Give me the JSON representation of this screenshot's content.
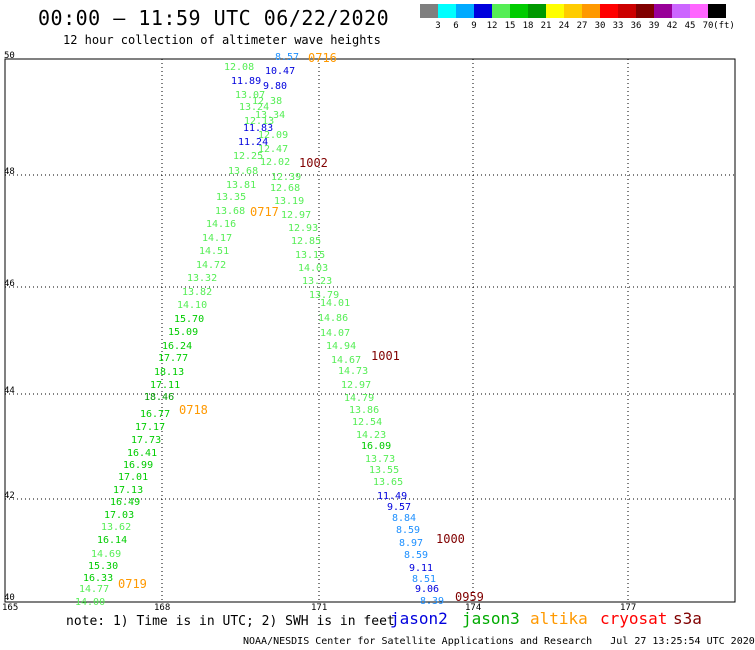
{
  "header": {
    "title": "00:00 – 11:59 UTC 06/22/2020",
    "subtitle": "12 hour collection of altimeter wave heights"
  },
  "legend": {
    "items": [
      {
        "label": "3",
        "color": "#7f7f7f"
      },
      {
        "label": "6",
        "color": "#00ffff"
      },
      {
        "label": "9",
        "color": "#00aaff"
      },
      {
        "label": "12",
        "color": "#0000dd"
      },
      {
        "label": "15",
        "color": "#55ee55"
      },
      {
        "label": "18",
        "color": "#00cc00"
      },
      {
        "label": "21",
        "color": "#009900"
      },
      {
        "label": "24",
        "color": "#ffff00"
      },
      {
        "label": "27",
        "color": "#ffcc00"
      },
      {
        "label": "30",
        "color": "#ff9900"
      },
      {
        "label": "33",
        "color": "#ff0000"
      },
      {
        "label": "36",
        "color": "#cc0000"
      },
      {
        "label": "39",
        "color": "#800000"
      },
      {
        "label": "42",
        "color": "#990099"
      },
      {
        "label": "45",
        "color": "#cc66ff"
      },
      {
        "label": "70",
        "color": "#ff66ff"
      },
      {
        "label": "",
        "color": "#000000"
      }
    ],
    "unit": "(ft)"
  },
  "axes": {
    "lat_labels": [
      "50",
      "48",
      "46",
      "44",
      "42",
      "40"
    ],
    "lon_labels": [
      "165",
      "168",
      "171",
      "174",
      "177"
    ]
  },
  "map_data": {
    "tracks": [
      {
        "satellite": "altika",
        "color": "#ff9900",
        "points": [
          {
            "v": "8.57",
            "c": "#1e90ff"
          },
          {
            "v": "10.47",
            "c": "#0000dd"
          },
          {
            "v": "12.08",
            "c": "#55ee55"
          },
          {
            "v": "11.89",
            "c": "#0000dd"
          },
          {
            "v": "9.80",
            "c": "#0000dd"
          },
          {
            "v": "13.07",
            "c": "#55ee55"
          },
          {
            "v": "12.38",
            "c": "#55ee55"
          },
          {
            "v": "13.24",
            "c": "#55ee55"
          },
          {
            "v": "13.34",
            "c": "#55ee55"
          },
          {
            "v": "12.13",
            "c": "#55ee55"
          },
          {
            "v": "11.83",
            "c": "#0000dd"
          },
          {
            "v": "12.09",
            "c": "#55ee55"
          },
          {
            "v": "11.24",
            "c": "#0000dd"
          },
          {
            "v": "12.47",
            "c": "#55ee55"
          },
          {
            "v": "12.25",
            "c": "#55ee55"
          },
          {
            "v": "12.02",
            "c": "#55ee55"
          },
          {
            "v": "12.39",
            "c": "#55ee55"
          },
          {
            "v": "13.68",
            "c": "#55ee55"
          },
          {
            "v": "13.81",
            "c": "#55ee55"
          },
          {
            "v": "12.68",
            "c": "#55ee55"
          },
          {
            "v": "13.35",
            "c": "#55ee55"
          },
          {
            "v": "13.19",
            "c": "#55ee55"
          },
          {
            "v": "13.68",
            "c": "#55ee55"
          },
          {
            "v": "12.97",
            "c": "#55ee55"
          },
          {
            "v": "14.16",
            "c": "#55ee55"
          },
          {
            "v": "12.93",
            "c": "#55ee55"
          },
          {
            "v": "14.17",
            "c": "#55ee55"
          },
          {
            "v": "12.85",
            "c": "#55ee55"
          },
          {
            "v": "14.51",
            "c": "#55ee55"
          },
          {
            "v": "13.15",
            "c": "#55ee55"
          },
          {
            "v": "14.72",
            "c": "#55ee55"
          },
          {
            "v": "14.03",
            "c": "#55ee55"
          },
          {
            "v": "13.32",
            "c": "#55ee55"
          },
          {
            "v": "13.23",
            "c": "#55ee55"
          },
          {
            "v": "13.82",
            "c": "#55ee55"
          },
          {
            "v": "13.79",
            "c": "#55ee55"
          },
          {
            "v": "14.10",
            "c": "#55ee55"
          },
          {
            "v": "14.01",
            "c": "#55ee55"
          },
          {
            "v": "15.70",
            "c": "#00cc00"
          },
          {
            "v": "14.86",
            "c": "#55ee55"
          },
          {
            "v": "15.09",
            "c": "#00cc00"
          },
          {
            "v": "14.07",
            "c": "#55ee55"
          },
          {
            "v": "16.24",
            "c": "#00cc00"
          },
          {
            "v": "14.94",
            "c": "#55ee55"
          },
          {
            "v": "17.77",
            "c": "#00cc00"
          },
          {
            "v": "14.67",
            "c": "#55ee55"
          },
          {
            "v": "18.13",
            "c": "#00cc00"
          },
          {
            "v": "14.73",
            "c": "#55ee55"
          },
          {
            "v": "17.11",
            "c": "#00cc00"
          },
          {
            "v": "12.97",
            "c": "#55ee55"
          },
          {
            "v": "18.46",
            "c": "#009900"
          },
          {
            "v": "14.79",
            "c": "#55ee55"
          },
          {
            "v": "16.77",
            "c": "#00cc00"
          },
          {
            "v": "13.86",
            "c": "#55ee55"
          },
          {
            "v": "17.17",
            "c": "#00cc00"
          },
          {
            "v": "12.54",
            "c": "#55ee55"
          },
          {
            "v": "17.73",
            "c": "#00cc00"
          },
          {
            "v": "14.23",
            "c": "#55ee55"
          },
          {
            "v": "16.41",
            "c": "#00cc00"
          },
          {
            "v": "16.09",
            "c": "#00cc00"
          },
          {
            "v": "16.99",
            "c": "#00cc00"
          },
          {
            "v": "13.73",
            "c": "#55ee55"
          },
          {
            "v": "17.01",
            "c": "#00cc00"
          },
          {
            "v": "13.55",
            "c": "#55ee55"
          },
          {
            "v": "17.13",
            "c": "#00cc00"
          },
          {
            "v": "13.65",
            "c": "#55ee55"
          },
          {
            "v": "16.49",
            "c": "#00cc00"
          },
          {
            "v": "11.49",
            "c": "#0000dd"
          },
          {
            "v": "17.03",
            "c": "#00cc00"
          },
          {
            "v": "9.57",
            "c": "#0000dd"
          },
          {
            "v": "13.62",
            "c": "#55ee55"
          },
          {
            "v": "8.84",
            "c": "#1e90ff"
          },
          {
            "v": "16.14",
            "c": "#00cc00"
          },
          {
            "v": "8.59",
            "c": "#1e90ff"
          },
          {
            "v": "14.69",
            "c": "#55ee55"
          },
          {
            "v": "8.97",
            "c": "#1e90ff"
          },
          {
            "v": "15.30",
            "c": "#00cc00"
          },
          {
            "v": "8.59",
            "c": "#1e90ff"
          },
          {
            "v": "16.33",
            "c": "#00cc00"
          },
          {
            "v": "9.11",
            "c": "#0000dd"
          },
          {
            "v": "14.77",
            "c": "#55ee55"
          },
          {
            "v": "8.51",
            "c": "#1e90ff"
          },
          {
            "v": "9.06",
            "c": "#0000dd"
          },
          {
            "v": "14.00",
            "c": "#55ee55"
          },
          {
            "v": "8.39",
            "c": "#1e90ff"
          }
        ]
      }
    ],
    "time_labels": [
      {
        "text": "0716",
        "color": "#ff9900"
      },
      {
        "text": "1002",
        "color": "#800000"
      },
      {
        "text": "0717",
        "color": "#ff9900"
      },
      {
        "text": "1001",
        "color": "#800000"
      },
      {
        "text": "0718",
        "color": "#ff9900"
      },
      {
        "text": "1000",
        "color": "#800000"
      },
      {
        "text": "0719",
        "color": "#ff9900"
      },
      {
        "text": "0959",
        "color": "#800000"
      }
    ]
  },
  "footer": {
    "note": "note: 1) Time is in UTC; 2) SWH is in feet",
    "satellites": [
      {
        "name": "jason2",
        "color": "#0000dd"
      },
      {
        "name": "jason3",
        "color": "#00aa00"
      },
      {
        "name": "altika",
        "color": "#ff9900"
      },
      {
        "name": "cryosat",
        "color": "#ff0000"
      },
      {
        "name": "s3a",
        "color": "#800000"
      }
    ],
    "credit": "NOAA/NESDIS Center for Satellite Applications and Research",
    "timestamp": "Jul 27 13:25:54 UTC 2020"
  }
}
